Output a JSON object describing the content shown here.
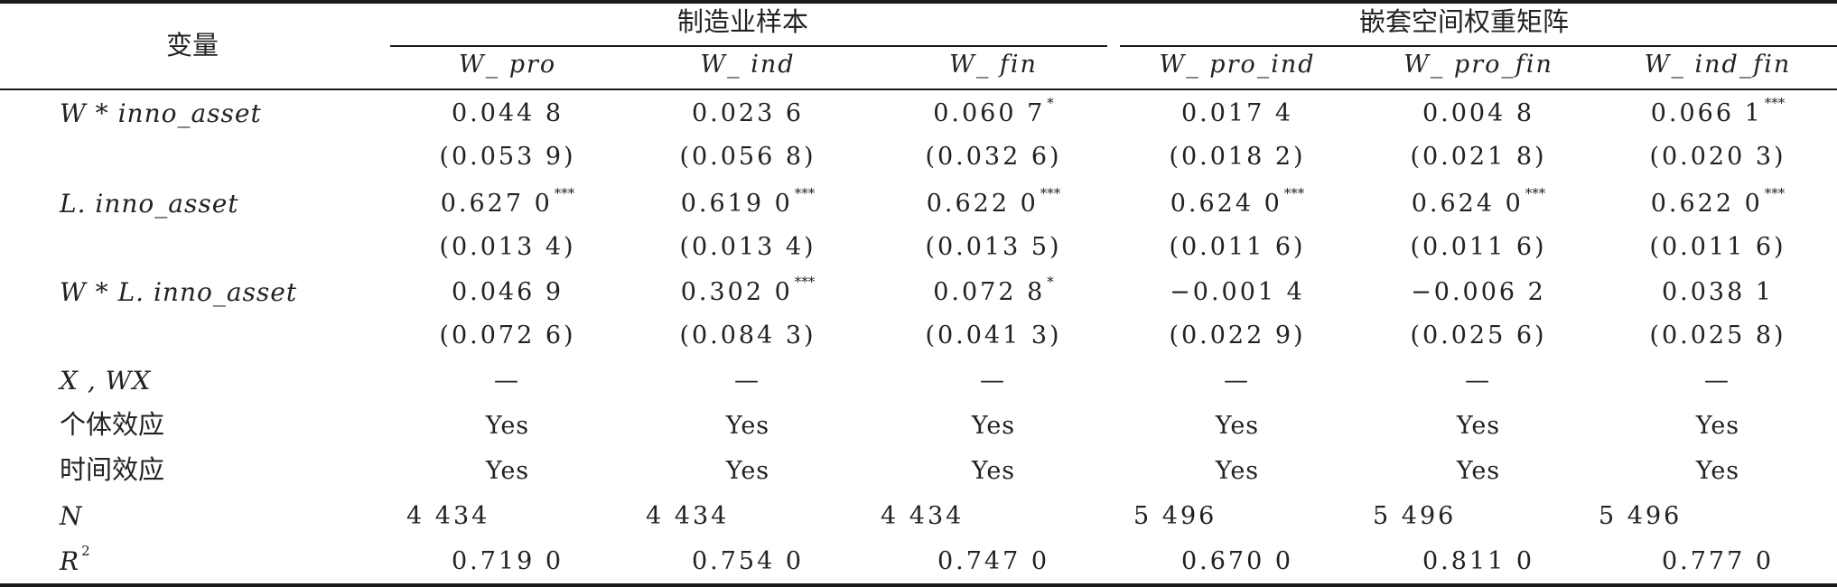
{
  "header": {
    "variable_label": "变量",
    "group1": "制造业样本",
    "group2": "嵌套空间权重矩阵",
    "columns": [
      "W_ pro",
      "W_ ind",
      "W_ fin",
      "W_ pro_ind",
      "W_ pro_fin",
      "W_ ind_fin"
    ]
  },
  "rows": [
    {
      "label": "W * inno_asset",
      "cells": [
        {
          "v": "0.044 8",
          "s": ""
        },
        {
          "v": "0.023 6",
          "s": ""
        },
        {
          "v": "0.060 7",
          "s": "*"
        },
        {
          "v": "0.017 4",
          "s": ""
        },
        {
          "v": "0.004 8",
          "s": ""
        },
        {
          "v": "0.066 1",
          "s": "***"
        }
      ]
    },
    {
      "label": "",
      "cells": [
        {
          "v": "(0.053 9)",
          "s": ""
        },
        {
          "v": "(0.056 8)",
          "s": ""
        },
        {
          "v": "(0.032 6)",
          "s": ""
        },
        {
          "v": "(0.018 2)",
          "s": ""
        },
        {
          "v": "(0.021 8)",
          "s": ""
        },
        {
          "v": "(0.020 3)",
          "s": ""
        }
      ]
    },
    {
      "label": "L. inno_asset",
      "cells": [
        {
          "v": "0.627 0",
          "s": "***"
        },
        {
          "v": "0.619 0",
          "s": "***"
        },
        {
          "v": "0.622 0",
          "s": "***"
        },
        {
          "v": "0.624 0",
          "s": "***"
        },
        {
          "v": "0.624 0",
          "s": "***"
        },
        {
          "v": "0.622 0",
          "s": "***"
        }
      ]
    },
    {
      "label": "",
      "cells": [
        {
          "v": "(0.013 4)",
          "s": ""
        },
        {
          "v": "(0.013 4)",
          "s": ""
        },
        {
          "v": "(0.013 5)",
          "s": ""
        },
        {
          "v": "(0.011 6)",
          "s": ""
        },
        {
          "v": "(0.011 6)",
          "s": ""
        },
        {
          "v": "(0.011 6)",
          "s": ""
        }
      ]
    },
    {
      "label": "W * L. inno_asset",
      "cells": [
        {
          "v": "0.046 9",
          "s": ""
        },
        {
          "v": "0.302 0",
          "s": "***"
        },
        {
          "v": "0.072 8",
          "s": "*"
        },
        {
          "v": "−0.001 4",
          "s": ""
        },
        {
          "v": "−0.006 2",
          "s": ""
        },
        {
          "v": "0.038 1",
          "s": ""
        }
      ]
    },
    {
      "label": "",
      "cells": [
        {
          "v": "(0.072 6)",
          "s": ""
        },
        {
          "v": "(0.084 3)",
          "s": ""
        },
        {
          "v": "(0.041 3)",
          "s": ""
        },
        {
          "v": "(0.022 9)",
          "s": ""
        },
        {
          "v": "(0.025 6)",
          "s": ""
        },
        {
          "v": "(0.025 8)",
          "s": ""
        }
      ]
    },
    {
      "label": "X , WX",
      "cells": [
        {
          "v": "—",
          "s": ""
        },
        {
          "v": "—",
          "s": ""
        },
        {
          "v": "—",
          "s": ""
        },
        {
          "v": "—",
          "s": ""
        },
        {
          "v": "—",
          "s": ""
        },
        {
          "v": "—",
          "s": ""
        }
      ]
    },
    {
      "label": "个体效应",
      "cells": [
        {
          "v": "Yes",
          "s": ""
        },
        {
          "v": "Yes",
          "s": ""
        },
        {
          "v": "Yes",
          "s": ""
        },
        {
          "v": "Yes",
          "s": ""
        },
        {
          "v": "Yes",
          "s": ""
        },
        {
          "v": "Yes",
          "s": ""
        }
      ]
    },
    {
      "label": "时间效应",
      "cells": [
        {
          "v": "Yes",
          "s": ""
        },
        {
          "v": "Yes",
          "s": ""
        },
        {
          "v": "Yes",
          "s": ""
        },
        {
          "v": "Yes",
          "s": ""
        },
        {
          "v": "Yes",
          "s": ""
        },
        {
          "v": "Yes",
          "s": ""
        }
      ]
    },
    {
      "label": "N",
      "cells": [
        {
          "v": "4 434",
          "s": ""
        },
        {
          "v": "4 434",
          "s": ""
        },
        {
          "v": "4 434",
          "s": ""
        },
        {
          "v": "5 496",
          "s": ""
        },
        {
          "v": "5 496",
          "s": ""
        },
        {
          "v": "5 496",
          "s": ""
        }
      ]
    },
    {
      "label": "R",
      "label_sup": "2",
      "cells": [
        {
          "v": "0.719 0",
          "s": ""
        },
        {
          "v": "0.754 0",
          "s": ""
        },
        {
          "v": "0.747 0",
          "s": ""
        },
        {
          "v": "0.670 0",
          "s": ""
        },
        {
          "v": "0.811 0",
          "s": ""
        },
        {
          "v": "0.777 0",
          "s": ""
        }
      ]
    }
  ]
}
